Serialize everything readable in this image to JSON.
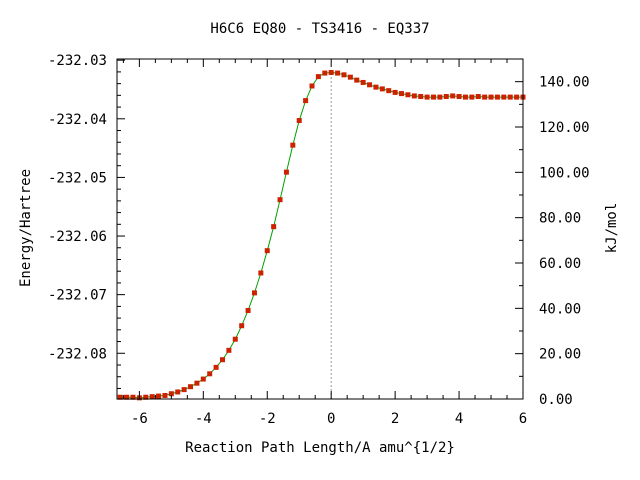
{
  "chart_data": {
    "type": "line",
    "title": "H6C6   EQ80 - TS3416 - EQ337",
    "xlabel": "Reaction Path Length/A amu^{1/2}",
    "ylabel_left": "Energy/Hartree",
    "ylabel_right": "kJ/mol",
    "xlim": [
      -6.7,
      6.0
    ],
    "ylim_left": [
      -232.0878,
      -232.0298
    ],
    "ylim_right": [
      0,
      150
    ],
    "x_ticks": [
      "-6",
      "-4",
      "-2",
      "0",
      "2",
      "4",
      "6"
    ],
    "x_tick_values": [
      -6,
      -4,
      -2,
      0,
      2,
      4,
      6
    ],
    "y_ticks_left": [
      "-232.03",
      "-232.04",
      "-232.05",
      "-232.06",
      "-232.07",
      "-232.08"
    ],
    "y_tick_values_left": [
      -232.03,
      -232.04,
      -232.05,
      -232.06,
      -232.07,
      -232.08
    ],
    "y_ticks_right": [
      "0.00",
      "20.00",
      "40.00",
      "60.00",
      "80.00",
      "100.00",
      "120.00",
      "140.00"
    ],
    "y_tick_values_right": [
      0,
      20,
      40,
      60,
      80,
      100,
      120,
      140
    ],
    "ts_marker_x": 0.0,
    "line_color": "#00a000",
    "marker_color": "#cc2200",
    "ts_line_color": "#999999",
    "series": [
      {
        "x": [
          -6.6,
          -6.4,
          -6.2,
          -6.0,
          -5.8,
          -5.6,
          -5.4,
          -5.2,
          -5.0,
          -4.8,
          -4.6,
          -4.4,
          -4.2,
          -4.0,
          -3.8,
          -3.6,
          -3.4,
          -3.2,
          -3.0,
          -2.8,
          -2.6,
          -2.4,
          -2.2,
          -2.0,
          -1.8,
          -1.6,
          -1.4,
          -1.2,
          -1.0,
          -0.8,
          -0.6,
          -0.4,
          -0.2,
          0.0,
          0.2,
          0.4,
          0.6,
          0.8,
          1.0,
          1.2,
          1.4,
          1.6,
          1.8,
          2.0,
          2.2,
          2.4,
          2.6,
          2.8,
          3.0,
          3.2,
          3.4,
          3.6,
          3.8,
          4.0,
          4.2,
          4.4,
          4.6,
          4.8,
          5.0,
          5.2,
          5.4,
          5.6,
          5.8,
          6.0
        ],
        "y": [
          -232.0875,
          -232.0875,
          -232.0875,
          -232.0876,
          -232.0875,
          -232.0874,
          -232.0873,
          -232.0872,
          -232.0869,
          -232.0866,
          -232.0862,
          -232.0857,
          -232.0851,
          -232.0844,
          -232.0835,
          -232.0824,
          -232.0811,
          -232.0795,
          -232.0776,
          -232.0753,
          -232.0727,
          -232.0697,
          -232.0663,
          -232.0625,
          -232.0584,
          -232.0538,
          -232.0491,
          -232.0445,
          -232.0403,
          -232.0369,
          -232.0344,
          -232.0328,
          -232.0322,
          -232.0321,
          -232.0322,
          -232.0325,
          -232.0329,
          -232.0334,
          -232.0338,
          -232.0342,
          -232.0346,
          -232.0349,
          -232.0352,
          -232.0355,
          -232.0357,
          -232.0359,
          -232.0361,
          -232.0362,
          -232.0363,
          -232.0363,
          -232.0363,
          -232.0362,
          -232.0361,
          -232.0362,
          -232.0363,
          -232.0363,
          -232.0362,
          -232.0363,
          -232.0363,
          -232.0363,
          -232.0363,
          -232.0363,
          -232.0363,
          -232.0363
        ]
      }
    ]
  }
}
